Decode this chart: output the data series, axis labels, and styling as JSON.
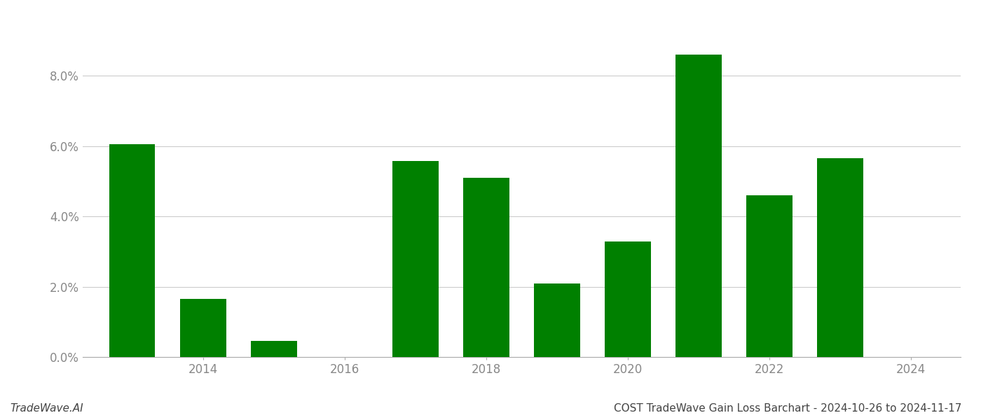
{
  "years": [
    2013,
    2014,
    2015,
    2016,
    2017,
    2018,
    2019,
    2020,
    2021,
    2022,
    2023
  ],
  "values": [
    0.0605,
    0.0165,
    0.0045,
    null,
    0.0557,
    0.051,
    0.021,
    0.0328,
    0.086,
    0.046,
    0.0565
  ],
  "bar_color": "#008000",
  "background_color": "#ffffff",
  "title": "COST TradeWave Gain Loss Barchart - 2024-10-26 to 2024-11-17",
  "watermark": "TradeWave.AI",
  "ylim": [
    0,
    0.095
  ],
  "yticks": [
    0.0,
    0.02,
    0.04,
    0.06,
    0.08
  ],
  "grid_color": "#cccccc",
  "tick_label_color": "#888888",
  "title_color": "#444444",
  "watermark_color": "#444444",
  "title_fontsize": 11,
  "watermark_fontsize": 11,
  "tick_fontsize": 12,
  "bar_width": 0.65,
  "xlim": [
    2012.3,
    2024.7
  ],
  "xticks": [
    2014,
    2016,
    2018,
    2020,
    2022,
    2024
  ]
}
